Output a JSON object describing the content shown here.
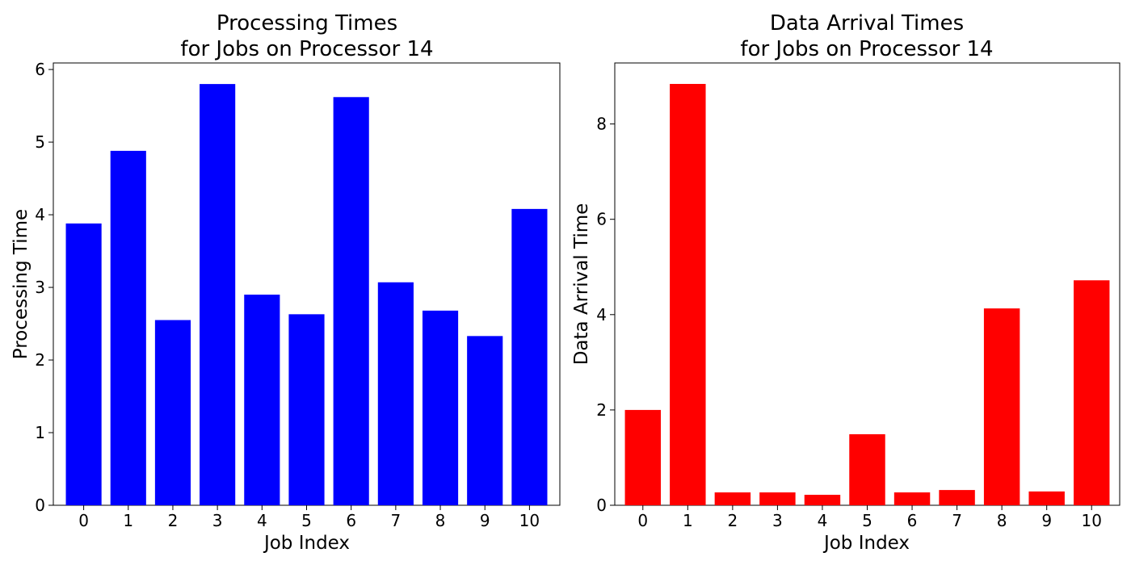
{
  "chart_data": [
    {
      "type": "bar",
      "title_lines": [
        "Processing Times",
        "for Jobs on Processor 14"
      ],
      "xlabel": "Job Index",
      "ylabel": "Processing Time",
      "categories": [
        "0",
        "1",
        "2",
        "3",
        "4",
        "5",
        "6",
        "7",
        "8",
        "9",
        "10"
      ],
      "values": [
        3.88,
        4.88,
        2.55,
        5.8,
        2.9,
        2.63,
        5.62,
        3.07,
        2.68,
        2.33,
        4.08
      ],
      "ylim": [
        0,
        6.09
      ],
      "yticks": [
        "0",
        "1",
        "2",
        "3",
        "4",
        "5",
        "6"
      ],
      "color": "#0000ff",
      "grid": false
    },
    {
      "type": "bar",
      "title_lines": [
        "Data Arrival Times",
        "for Jobs on Processor 14"
      ],
      "xlabel": "Job Index",
      "ylabel": "Data Arrival Time",
      "categories": [
        "0",
        "1",
        "2",
        "3",
        "4",
        "5",
        "6",
        "7",
        "8",
        "9",
        "10"
      ],
      "values": [
        2.0,
        8.84,
        0.27,
        0.27,
        0.22,
        1.49,
        0.27,
        0.32,
        4.13,
        0.29,
        4.72
      ],
      "ylim": [
        0,
        9.28
      ],
      "yticks": [
        "0",
        "2",
        "4",
        "6",
        "8"
      ],
      "color": "#ff0000",
      "grid": false
    }
  ]
}
